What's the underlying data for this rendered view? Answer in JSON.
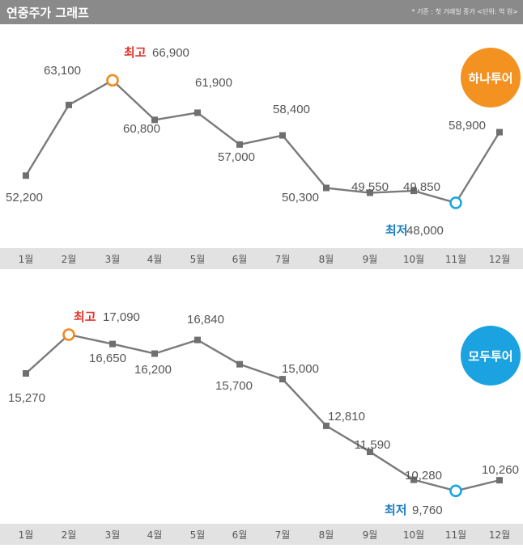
{
  "header": {
    "title": "연중주가 그래프",
    "note": "* 기준 : 첫 거래일 종가 <단위: 억 원>"
  },
  "colors": {
    "line": "#7a7a7a",
    "marker": "#6f6f6f",
    "axis_band": "#e2e2e2",
    "max_ring": "#ef8a1e",
    "min_ring": "#1aa7df",
    "badge_hana": "#f39220",
    "badge_modu": "#1aa3e0"
  },
  "chart_data": [
    {
      "type": "line",
      "name": "하나투어",
      "badge": "하나투어",
      "categories": [
        "1월",
        "2월",
        "3월",
        "4월",
        "5월",
        "6월",
        "7월",
        "8월",
        "9월",
        "10월",
        "11월",
        "12월"
      ],
      "values": [
        52200,
        63100,
        66900,
        60800,
        61900,
        57000,
        58400,
        50300,
        49550,
        49850,
        48000,
        58900
      ],
      "labels": [
        "52,200",
        "63,100",
        "66,900",
        "60,800",
        "61,900",
        "57,000",
        "58,400",
        "50,300",
        "49,550",
        "49,850",
        "48,000",
        "58,900"
      ],
      "max_label": "최고",
      "min_label": "최저",
      "max_index": 2,
      "min_index": 10,
      "ylim": [
        46000,
        70500
      ]
    },
    {
      "type": "line",
      "name": "모두투어",
      "badge": "모두투어",
      "categories": [
        "1월",
        "2월",
        "3월",
        "4월",
        "5월",
        "6월",
        "7월",
        "8월",
        "9월",
        "10월",
        "11월",
        "12월"
      ],
      "values": [
        15270,
        17090,
        16650,
        16200,
        16840,
        15700,
        15000,
        12810,
        11590,
        10280,
        9760,
        10260
      ],
      "labels": [
        "15,270",
        "17,090",
        "16,650",
        "16,200",
        "16,840",
        "15,700",
        "15,000",
        "12,810",
        "11,590",
        "10,280",
        "9,760",
        "10,260"
      ],
      "max_label": "최고",
      "min_label": "최저",
      "max_index": 1,
      "min_index": 10,
      "ylim": [
        9090,
        18000
      ]
    }
  ]
}
